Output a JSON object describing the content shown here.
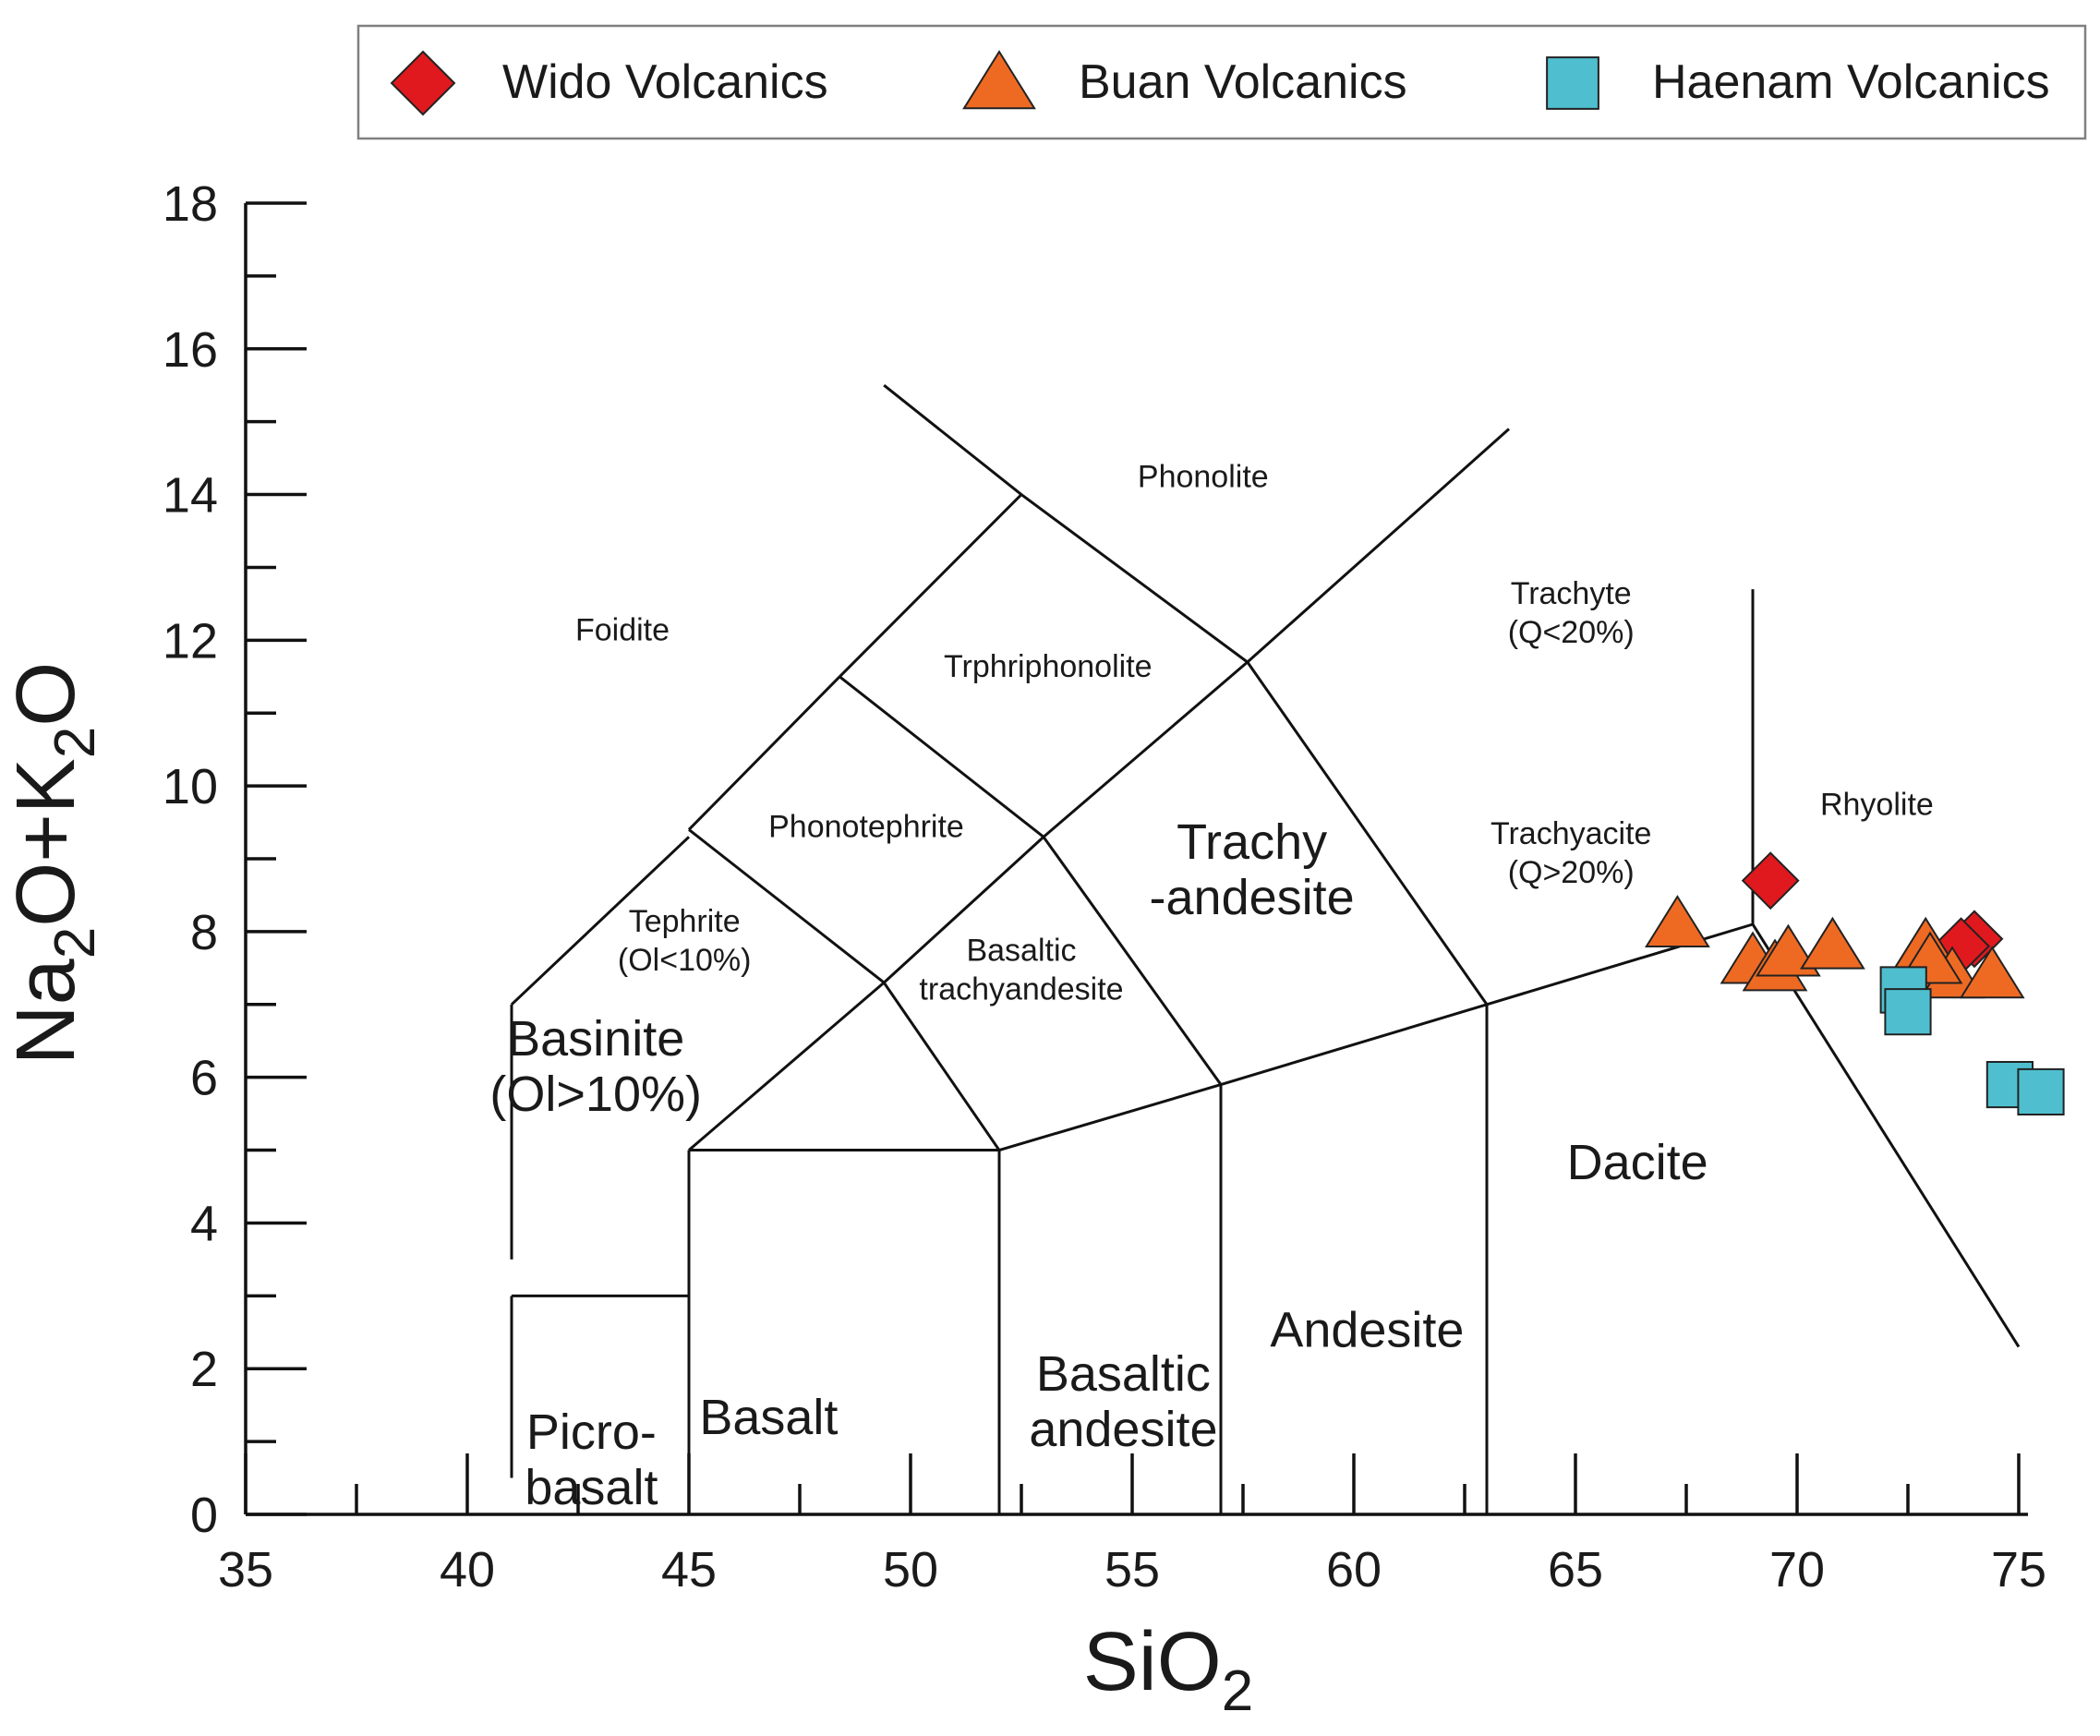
{
  "chart_data": {
    "type": "scatter",
    "title": "",
    "xlabel": "SiO2",
    "ylabel": "Na2O+K2O",
    "xlabel_parts": [
      {
        "text": "SiO",
        "sub": false
      },
      {
        "text": "2",
        "sub": true
      }
    ],
    "ylabel_parts": [
      {
        "text": "Na",
        "sub": false
      },
      {
        "text": "2",
        "sub": true
      },
      {
        "text": "O+K",
        "sub": false
      },
      {
        "text": "2",
        "sub": true
      },
      {
        "text": "O",
        "sub": false
      }
    ],
    "xlim": [
      35,
      75
    ],
    "ylim": [
      0,
      18
    ],
    "x_major_ticks": [
      35,
      40,
      45,
      50,
      55,
      60,
      65,
      70,
      75
    ],
    "x_tick_labels": [
      "35",
      "40",
      "45",
      "50",
      "55",
      "60",
      "65",
      "70",
      "75"
    ],
    "x_minor_ticks": [
      37.5,
      42.5,
      47.5,
      52.5,
      57.5,
      62.5,
      67.5,
      72.5
    ],
    "y_major_ticks": [
      0,
      2,
      4,
      6,
      8,
      10,
      12,
      14,
      16,
      18
    ],
    "y_tick_labels": [
      "0",
      "2",
      "4",
      "6",
      "8",
      "10",
      "12",
      "14",
      "16",
      "18"
    ],
    "y_minor_ticks": [
      1,
      3,
      5,
      7,
      9,
      11,
      13,
      15,
      17
    ],
    "grid": false,
    "legend_position": "top",
    "series": [
      {
        "name": "Wido Volcanics",
        "marker": "diamond",
        "color": "#e0191e",
        "points": [
          [
            69.4,
            8.7
          ],
          [
            74.0,
            7.9
          ],
          [
            73.7,
            7.8
          ]
        ]
      },
      {
        "name": "Buan Volcanics",
        "marker": "triangle",
        "color": "#ee6a23",
        "points": [
          [
            67.3,
            8.1
          ],
          [
            69.0,
            7.6
          ],
          [
            69.5,
            7.5
          ],
          [
            69.8,
            7.7
          ],
          [
            70.8,
            7.8
          ],
          [
            72.9,
            7.8
          ],
          [
            73.1,
            7.5
          ],
          [
            73.5,
            7.4
          ],
          [
            73.0,
            7.6
          ],
          [
            74.4,
            7.4
          ]
        ]
      },
      {
        "name": "Haenam Volcanics",
        "marker": "square",
        "color": "#4fbfcf",
        "points": [
          [
            72.4,
            7.2
          ],
          [
            72.5,
            6.9
          ],
          [
            74.8,
            5.9
          ],
          [
            75.5,
            5.8
          ]
        ]
      }
    ],
    "boundaries": [
      [
        [
          41,
          0.5
        ],
        [
          41,
          3
        ]
      ],
      [
        [
          41,
          3
        ],
        [
          45,
          3
        ]
      ],
      [
        [
          45,
          0
        ],
        [
          45,
          5
        ]
      ],
      [
        [
          45,
          5
        ],
        [
          52,
          5
        ]
      ],
      [
        [
          52,
          0
        ],
        [
          52,
          5
        ]
      ],
      [
        [
          52,
          5
        ],
        [
          57,
          5.9
        ]
      ],
      [
        [
          57,
          0
        ],
        [
          57,
          5.9
        ]
      ],
      [
        [
          57,
          5.9
        ],
        [
          63,
          7
        ]
      ],
      [
        [
          63,
          0
        ],
        [
          63,
          7
        ]
      ],
      [
        [
          63,
          7
        ],
        [
          69,
          8.1
        ]
      ],
      [
        [
          69,
          8.1
        ],
        [
          69,
          12.7
        ]
      ],
      [
        [
          69,
          8.1
        ],
        [
          75,
          2.3
        ]
      ],
      [
        [
          41,
          3.5
        ],
        [
          41,
          7
        ]
      ],
      [
        [
          41,
          7
        ],
        [
          45,
          9.3
        ]
      ],
      [
        [
          45,
          9.4
        ],
        [
          48.4,
          11.5
        ]
      ],
      [
        [
          48.4,
          11.5
        ],
        [
          52.5,
          14
        ]
      ],
      [
        [
          52.5,
          14
        ],
        [
          49.4,
          15.5
        ]
      ],
      [
        [
          45,
          5
        ],
        [
          49.4,
          7.3
        ]
      ],
      [
        [
          49.4,
          7.3
        ],
        [
          53,
          9.3
        ]
      ],
      [
        [
          53,
          9.3
        ],
        [
          57.6,
          11.7
        ]
      ],
      [
        [
          57.6,
          11.7
        ],
        [
          63.5,
          14.9
        ]
      ],
      [
        [
          49.4,
          7.3
        ],
        [
          45,
          9.4
        ]
      ],
      [
        [
          53,
          9.3
        ],
        [
          48.4,
          11.5
        ]
      ],
      [
        [
          57.6,
          11.7
        ],
        [
          52.5,
          14
        ]
      ],
      [
        [
          49.4,
          7.3
        ],
        [
          52,
          5
        ]
      ],
      [
        [
          53,
          9.3
        ],
        [
          57,
          5.9
        ]
      ],
      [
        [
          57.6,
          11.7
        ],
        [
          63,
          7
        ]
      ]
    ],
    "field_labels": [
      {
        "lines": [
          "Foidite"
        ],
        "x": 43.5,
        "y": 12.0,
        "size": "small"
      },
      {
        "lines": [
          "Phonolite"
        ],
        "x": 56.6,
        "y": 14.1,
        "size": "small"
      },
      {
        "lines": [
          "Trphriphonolite"
        ],
        "x": 53.1,
        "y": 11.5,
        "size": "small"
      },
      {
        "lines": [
          "Phonotephrite"
        ],
        "x": 49.0,
        "y": 9.3,
        "size": "small"
      },
      {
        "lines": [
          "Tephrite",
          "(Ol<10%)"
        ],
        "x": 44.9,
        "y": 8.0,
        "size": "small"
      },
      {
        "lines": [
          "Basaltic",
          "trachyandesite"
        ],
        "x": 52.5,
        "y": 7.6,
        "size": "small"
      },
      {
        "lines": [
          "Trachy",
          "-andesite"
        ],
        "x": 57.7,
        "y": 9.0,
        "size": "large"
      },
      {
        "lines": [
          "Trachyte",
          "(Q<20%)"
        ],
        "x": 64.9,
        "y": 12.5,
        "size": "small"
      },
      {
        "lines": [
          "Trachyacite",
          "(Q>20%)"
        ],
        "x": 64.9,
        "y": 9.2,
        "size": "small"
      },
      {
        "lines": [
          "Rhyolite"
        ],
        "x": 71.8,
        "y": 9.6,
        "size": "small"
      },
      {
        "lines": [
          "Basinite",
          "(Ol>10%)"
        ],
        "x": 42.9,
        "y": 6.3,
        "size": "large"
      },
      {
        "lines": [
          "Dacite"
        ],
        "x": 66.4,
        "y": 4.6,
        "size": "large"
      },
      {
        "lines": [
          "Basaltic",
          "andesite"
        ],
        "x": 54.8,
        "y": 1.7,
        "size": "large"
      },
      {
        "lines": [
          "Andesite"
        ],
        "x": 60.3,
        "y": 2.3,
        "size": "large"
      },
      {
        "lines": [
          "Picro-",
          "basalt"
        ],
        "x": 42.8,
        "y": 0.9,
        "size": "large"
      },
      {
        "lines": [
          "Basalt"
        ],
        "x": 46.8,
        "y": 1.1,
        "size": "large"
      }
    ]
  }
}
